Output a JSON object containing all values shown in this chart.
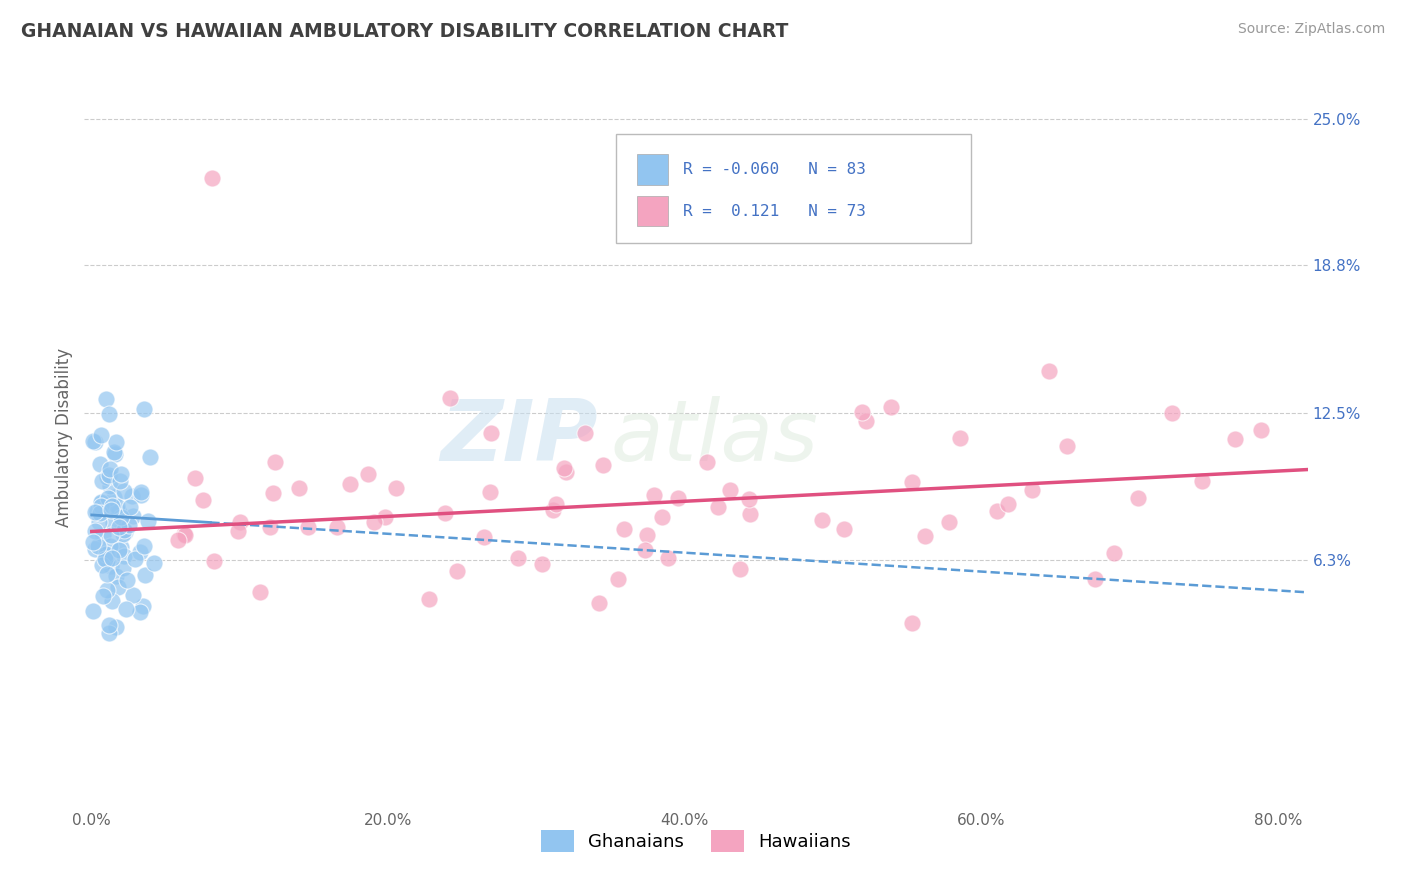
{
  "title": "GHANAIAN VS HAWAIIAN AMBULATORY DISABILITY CORRELATION CHART",
  "source": "Source: ZipAtlas.com",
  "ylabel": "Ambulatory Disability",
  "xlabel_ticks": [
    "0.0%",
    "20.0%",
    "40.0%",
    "60.0%",
    "80.0%"
  ],
  "xlabel_vals": [
    0.0,
    0.2,
    0.4,
    0.6,
    0.8
  ],
  "ytick_labels": [
    "6.3%",
    "12.5%",
    "18.8%",
    "25.0%"
  ],
  "ytick_vals": [
    0.063,
    0.125,
    0.188,
    0.25
  ],
  "right_ytick_labels": [
    "25.0%",
    "18.8%",
    "12.5%",
    "6.3%"
  ],
  "xlim": [
    -0.005,
    0.82
  ],
  "ylim": [
    -0.04,
    0.27
  ],
  "ghanaian_R": -0.06,
  "ghanaian_N": 83,
  "hawaiian_R": 0.121,
  "hawaiian_N": 73,
  "ghanaian_color": "#92C5F0",
  "hawaiian_color": "#F4A4C0",
  "ghanaian_line_color": "#5B9BD5",
  "hawaiian_line_color": "#E05080",
  "background_color": "#FFFFFF",
  "grid_color": "#CCCCCC",
  "title_color": "#404040",
  "legend_text_color": "#4472C4",
  "watermark_zip": "ZIP",
  "watermark_atlas": "atlas",
  "legend_R1": "R = -0.060",
  "legend_N1": "N = 83",
  "legend_R2": "R =  0.121",
  "legend_N2": "N = 73"
}
